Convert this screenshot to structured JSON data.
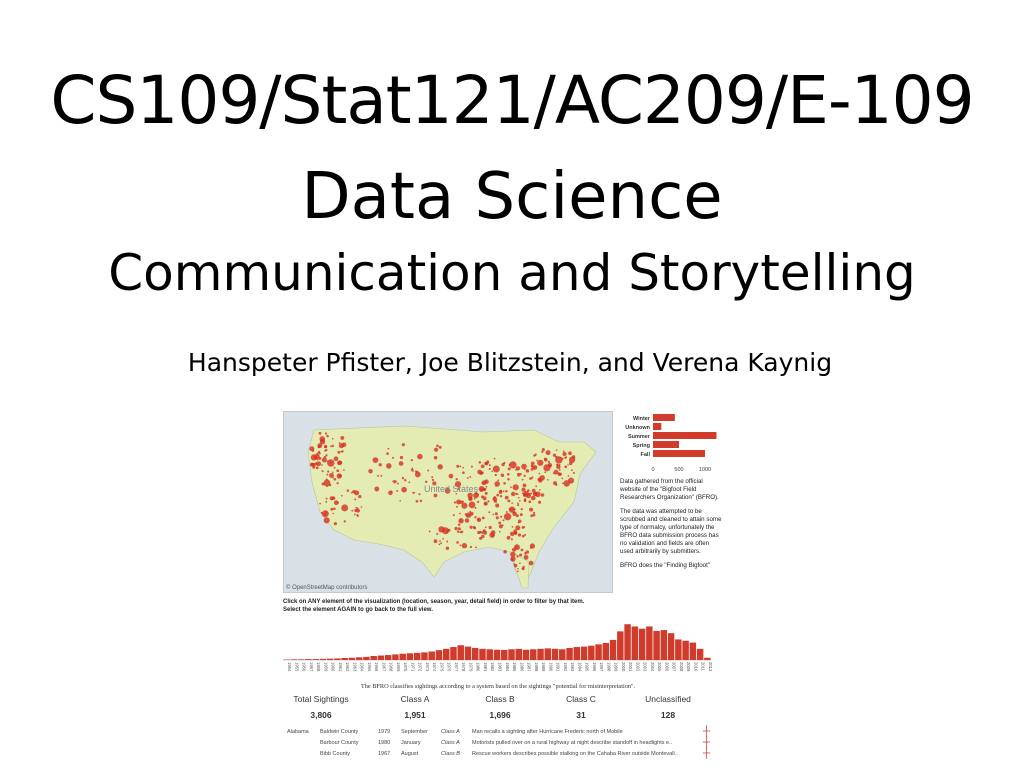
{
  "slide": {
    "title_line1": "CS109/Stat121/AC209/E-109",
    "title_line2": "Data Science",
    "title_line3": "Communication and Storytelling",
    "authors": "Hanspeter Pfister, Joe Blitzstein, and Verena Kaynig"
  },
  "viz": {
    "map_label": "United States",
    "map_credit": "© OpenStreetMap contributors",
    "season_chart": {
      "categories": [
        "Winter",
        "Unknown",
        "Summer",
        "Spring",
        "Fall"
      ],
      "values": [
        420,
        160,
        1220,
        500,
        1000
      ],
      "axis_ticks": [
        "0",
        "500",
        "1000"
      ],
      "bar_color": "#d03b2b"
    },
    "desc_p1": "Data gathered from the official website of the \"Bigfoot Field Researchers Organization\" (BFRO).",
    "desc_p2": "The data was attempted to be scrubbed and cleaned to attain some type of normalcy, unfortunately the BFRO data submission process has no validation and fields are often used arbitrarily by submitters.",
    "desc_p3": "BFRO does the \"Finding Bigfoot\"",
    "instructions_1": "Click on ANY element of the visualization (location, season, year, detail field) in order to filter by that item.",
    "instructions_2": "Select the element AGAIN to go back to the full view.",
    "year_chart": {
      "years": [
        "1954",
        "1955",
        "1956",
        "1957",
        "1958",
        "1959",
        "1960",
        "1961",
        "1962",
        "1963",
        "1964",
        "1965",
        "1966",
        "1967",
        "1968",
        "1969",
        "1970",
        "1971",
        "1972",
        "1973",
        "1974",
        "1975",
        "1976",
        "1977",
        "1978",
        "1979",
        "1980",
        "1981",
        "1982",
        "1983",
        "1984",
        "1985",
        "1986",
        "1987",
        "1988",
        "1989",
        "1990",
        "1991",
        "1992",
        "1993",
        "1994",
        "1995",
        "1996",
        "1997",
        "1998",
        "1999",
        "2000",
        "2001",
        "2002",
        "2003",
        "2004",
        "2005",
        "2006",
        "2007",
        "2008",
        "2009",
        "2010",
        "2011",
        "2012"
      ],
      "values": [
        2,
        3,
        3,
        4,
        4,
        5,
        6,
        7,
        9,
        10,
        12,
        14,
        18,
        20,
        22,
        25,
        28,
        30,
        32,
        34,
        38,
        44,
        50,
        58,
        66,
        60,
        54,
        50,
        48,
        46,
        45,
        48,
        50,
        46,
        48,
        50,
        52,
        50,
        48,
        54,
        58,
        60,
        64,
        70,
        76,
        90,
        128,
        160,
        150,
        140,
        150,
        130,
        134,
        120,
        92,
        86,
        78,
        50,
        10
      ],
      "bar_color": "#d03b2b"
    },
    "classify_note": "The BFRO classifies sightings according to a system based on the sightings \"potential for misinterpretation\".",
    "stats": [
      {
        "label": "Total Sightings",
        "value": "3,806"
      },
      {
        "label": "Class A",
        "value": "1,951"
      },
      {
        "label": "Class B",
        "value": "1,696"
      },
      {
        "label": "Class C",
        "value": "31"
      },
      {
        "label": "Unclassified",
        "value": "128"
      }
    ],
    "rows": [
      {
        "state": "Alabama",
        "county": "Baldwin County",
        "year": "1979",
        "month": "September",
        "cls": "Class A",
        "title": "Man recalls a sighting after Hurricane Frederic north of Mobile"
      },
      {
        "state": "",
        "county": "Barbour County",
        "year": "1980",
        "month": "January",
        "cls": "Class A",
        "title": "Motorists pulled over on a rural highway at night describe standoff in headlights e.."
      },
      {
        "state": "",
        "county": "Bibb County",
        "year": "1967",
        "month": "August",
        "cls": "Class B",
        "title": "Rescue workers describes possible stalking on the Cahaba River outside Montevall.."
      }
    ]
  }
}
